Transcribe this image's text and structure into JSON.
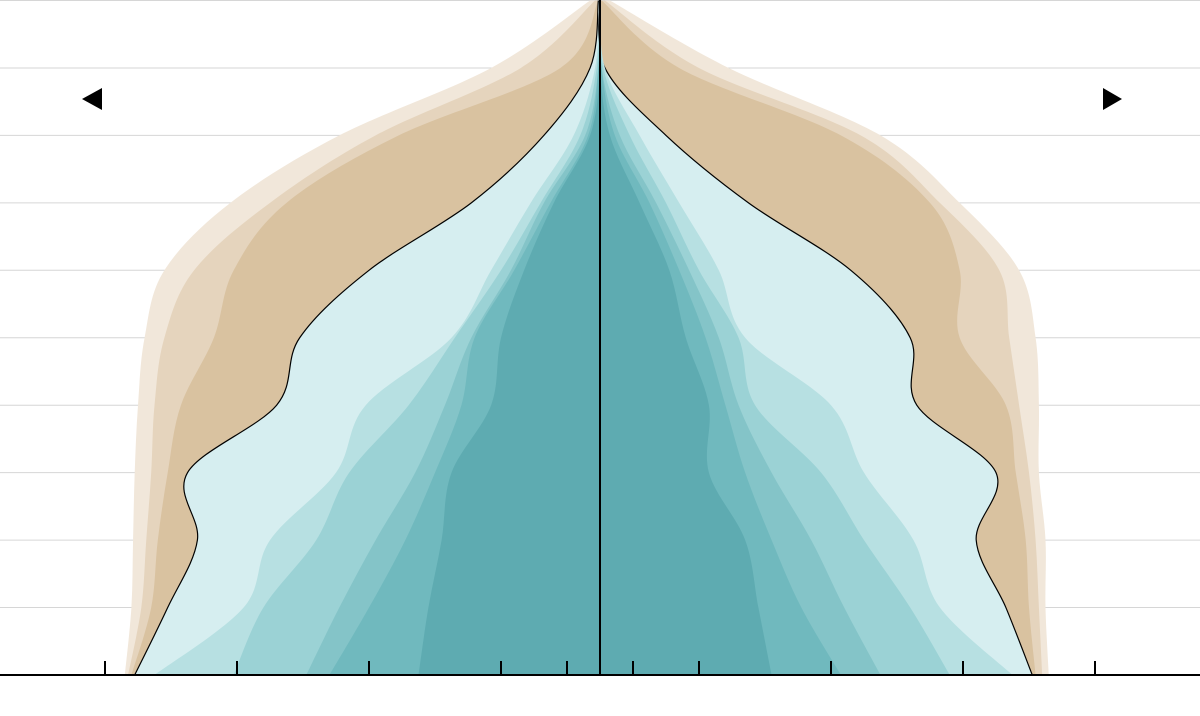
{
  "chart_data": {
    "type": "pyramid",
    "y": [
      0,
      10,
      20,
      30,
      40,
      50,
      60,
      70,
      80,
      90,
      100
    ],
    "ylim": [
      0,
      100
    ],
    "yticks": [
      0,
      10,
      20,
      30,
      40,
      50,
      60,
      70,
      80,
      90,
      100
    ],
    "grid": true,
    "xlim": [
      0,
      18
    ],
    "xticks": [
      1,
      3,
      7,
      11,
      15
    ],
    "series": [
      {
        "color": "#f1e7da",
        "left": [
          14.4,
          14.2,
          14.15,
          14.1,
          14.0,
          13.8,
          13.2,
          11.2,
          7.9,
          3.3,
          0.3
        ],
        "right": [
          13.6,
          13.5,
          13.5,
          13.3,
          13.3,
          13.2,
          12.7,
          10.9,
          8.5,
          3.9,
          0.3
        ]
      },
      {
        "color": "#e5d4bd",
        "left": [
          14.3,
          13.9,
          13.75,
          13.6,
          13.5,
          13.2,
          12.3,
          10.0,
          6.8,
          2.4,
          0.15
        ],
        "right": [
          13.4,
          13.3,
          13.2,
          13.0,
          12.7,
          12.4,
          12.1,
          10.3,
          7.9,
          3.0,
          0.15
        ]
      },
      {
        "color": "#d9c2a0",
        "left": [
          14.2,
          13.6,
          13.4,
          13.1,
          12.7,
          11.7,
          11.1,
          9.5,
          6.1,
          1.2,
          0.05
        ],
        "right": [
          13.2,
          13.0,
          12.9,
          12.6,
          12.3,
          10.9,
          10.9,
          10.0,
          7.3,
          2.4,
          0.05
        ]
      },
      {
        "color": "#d6eef0",
        "outline": "#000000",
        "left": [
          14.1,
          13.1,
          12.2,
          12.5,
          9.8,
          9.1,
          7.0,
          3.9,
          1.7,
          0.3,
          0.05
        ],
        "right": [
          13.1,
          12.3,
          11.4,
          12.0,
          9.6,
          9.4,
          7.6,
          4.5,
          2.0,
          0.15,
          0.0
        ]
      },
      {
        "color": "#b7e0e2",
        "left": [
          13.5,
          10.8,
          10.0,
          8.0,
          7.1,
          4.5,
          3.3,
          2.1,
          0.8,
          0.15,
          0.0
        ],
        "right": [
          12.5,
          10.3,
          9.5,
          8.0,
          7.0,
          4.4,
          3.6,
          2.4,
          1.2,
          0.15,
          0.0
        ]
      },
      {
        "color": "#9bd2d5",
        "left": [
          11.1,
          10.2,
          8.6,
          7.6,
          5.8,
          4.4,
          3.0,
          1.8,
          0.6,
          0.1,
          0.0
        ],
        "right": [
          10.6,
          9.4,
          8.0,
          6.7,
          4.7,
          4.2,
          3.0,
          2.0,
          0.9,
          0.1,
          0.0
        ]
      },
      {
        "color": "#84c4c8",
        "left": [
          8.9,
          7.9,
          6.8,
          5.6,
          4.7,
          3.9,
          2.7,
          1.7,
          0.45,
          0.05,
          0.0
        ],
        "right": [
          8.5,
          7.4,
          6.4,
          5.2,
          4.2,
          3.6,
          2.7,
          1.7,
          0.6,
          0.05,
          0.0
        ]
      },
      {
        "color": "#70b9be",
        "left": [
          8.2,
          7.0,
          5.9,
          5.0,
          4.2,
          3.8,
          2.6,
          1.5,
          0.36,
          0.05,
          0.0
        ],
        "right": [
          7.3,
          6.1,
          5.2,
          4.4,
          3.8,
          3.2,
          2.4,
          1.5,
          0.45,
          0.05,
          0.0
        ]
      },
      {
        "color": "#5eabb1",
        "left": [
          5.5,
          5.2,
          4.8,
          4.5,
          3.3,
          3.0,
          2.3,
          1.4,
          0.3,
          0.0,
          0.0
        ],
        "right": [
          5.2,
          4.8,
          4.4,
          3.3,
          3.3,
          2.6,
          2.1,
          1.2,
          0.3,
          0.0,
          0.0
        ]
      }
    ]
  }
}
